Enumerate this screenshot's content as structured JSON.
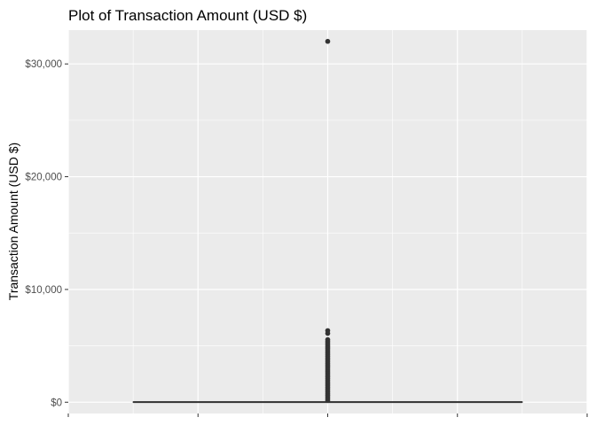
{
  "chart_data": {
    "type": "boxplot",
    "title": "Plot of Transaction Amount (USD $)",
    "xlabel": "",
    "ylabel": "Transaction Amount (USD $)",
    "ylim": [
      -1000,
      33000
    ],
    "y_ticks": [
      0,
      10000,
      20000,
      30000
    ],
    "y_tick_labels": [
      "$0",
      "$10,000",
      "$20,000",
      "$30,000"
    ],
    "grid": true,
    "box": {
      "x": 0,
      "xlim": [
        -0.5,
        0.5
      ],
      "box_width": [
        -0.375,
        0.375
      ],
      "min": 0,
      "q1": 1,
      "median": 10,
      "q3": 30,
      "max": 60
    },
    "outliers": [
      32000,
      6350,
      6100,
      5550,
      5400,
      5250,
      5100,
      4950,
      4800,
      4650,
      4500,
      4350,
      4200,
      4050,
      3900,
      3750,
      3600,
      3450,
      3300,
      3150,
      3000,
      2850,
      2700,
      2550,
      2400,
      2250,
      2100,
      1950,
      1800,
      1650,
      1500,
      1350,
      1200,
      1050,
      900,
      750,
      600,
      450,
      300,
      150
    ],
    "colors": {
      "panel": "#ebebeb",
      "grid": "#ffffff",
      "mark": "#333333"
    }
  }
}
